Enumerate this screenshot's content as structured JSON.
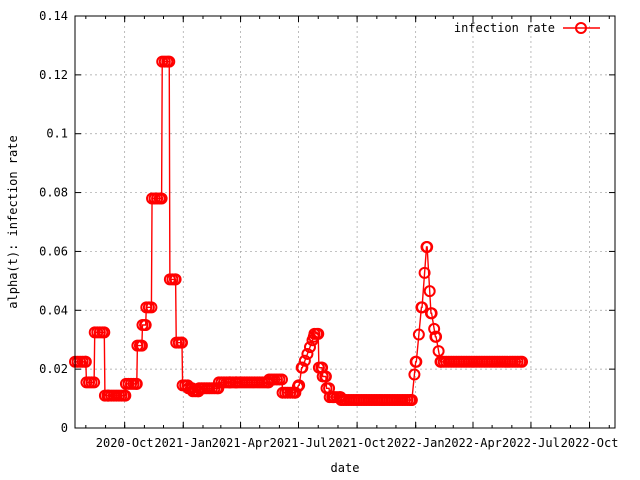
{
  "chart_data": {
    "type": "line",
    "xlabel": "date",
    "ylabel": "alpha(t): infection rate",
    "ylim": [
      0,
      0.14
    ],
    "yticks": [
      "0",
      "0.02",
      "0.04",
      "0.06",
      "0.08",
      "0.1",
      "0.12",
      "0.14"
    ],
    "xlim": [
      "2020-07-15",
      "2022-11-10"
    ],
    "xticks": [
      {
        "label": "2020-Oct",
        "date": "2020-10-01"
      },
      {
        "label": "2021-Jan",
        "date": "2021-01-01"
      },
      {
        "label": "2021-Apr",
        "date": "2021-04-01"
      },
      {
        "label": "2021-Jul",
        "date": "2021-07-01"
      },
      {
        "label": "2021-Oct",
        "date": "2021-10-01"
      },
      {
        "label": "2022-Jan",
        "date": "2022-01-01"
      },
      {
        "label": "2022-Apr",
        "date": "2022-04-01"
      },
      {
        "label": "2022-Jul",
        "date": "2022-07-01"
      },
      {
        "label": "2022-Oct",
        "date": "2022-10-01"
      }
    ],
    "grid": true,
    "legend_position": "top-right",
    "series": [
      {
        "name": "infection rate",
        "color": "#ff0000",
        "marker": "circle",
        "x": [
          "2020-07-15",
          "2020-08-01",
          "2020-08-02",
          "2020-08-14",
          "2020-08-15",
          "2020-08-30",
          "2020-08-31",
          "2020-09-05",
          "2020-09-06",
          "2020-10-02",
          "2020-10-03",
          "2020-10-20",
          "2020-10-21",
          "2020-10-28",
          "2020-10-29",
          "2020-11-03",
          "2020-11-04",
          "2020-11-12",
          "2020-11-13",
          "2020-11-28",
          "2020-11-29",
          "2020-12-10",
          "2020-12-11",
          "2020-12-20",
          "2020-12-21",
          "2020-12-30",
          "2020-12-31",
          "2021-01-08",
          "2021-01-09",
          "2021-01-15",
          "2021-01-16",
          "2021-01-25",
          "2021-01-26",
          "2021-02-25",
          "2021-02-26",
          "2021-03-15",
          "2021-03-16",
          "2021-03-25",
          "2021-03-26",
          "2021-05-15",
          "2021-05-16",
          "2021-06-05",
          "2021-06-06",
          "2021-06-25",
          "2021-06-26",
          "2021-07-01",
          "2021-07-02",
          "2021-07-06",
          "2021-07-07",
          "2021-07-25",
          "2021-07-26",
          "2021-08-01",
          "2021-08-02",
          "2021-08-07",
          "2021-08-08",
          "2021-08-13",
          "2021-08-14",
          "2021-08-18",
          "2021-08-19",
          "2021-08-25",
          "2021-08-26",
          "2021-09-05",
          "2021-09-06",
          "2021-12-25",
          "2021-12-26",
          "2022-01-01",
          "2022-01-02",
          "2022-01-10",
          "2022-01-11",
          "2022-01-18",
          "2022-01-19",
          "2022-01-25",
          "2022-01-26",
          "2022-02-01",
          "2022-02-02",
          "2022-02-09",
          "2022-02-10",
          "2022-06-17"
        ],
        "y": [
          0.0225,
          0.0225,
          0.0155,
          0.0155,
          0.0325,
          0.0325,
          0.011,
          0.011,
          0.011,
          0.011,
          0.015,
          0.015,
          0.028,
          0.028,
          0.035,
          0.035,
          0.041,
          0.041,
          0.078,
          0.078,
          0.1245,
          0.1245,
          0.0505,
          0.0505,
          0.029,
          0.029,
          0.0145,
          0.0145,
          0.0135,
          0.0135,
          0.0125,
          0.0125,
          0.0135,
          0.0135,
          0.0155,
          0.0155,
          0.0155,
          0.0155,
          0.0155,
          0.0155,
          0.0165,
          0.0165,
          0.012,
          0.012,
          0.012,
          0.0145,
          0.0145,
          0.0205,
          0.0205,
          0.031,
          0.032,
          0.032,
          0.0205,
          0.0205,
          0.0175,
          0.0175,
          0.0135,
          0.0135,
          0.0105,
          0.0105,
          0.0105,
          0.0105,
          0.0095,
          0.0095,
          0.0095,
          0.0225,
          0.0225,
          0.041,
          0.041,
          0.0615,
          0.0615,
          0.039,
          0.039,
          0.031,
          0.031,
          0.0225,
          0.0225,
          0.0225
        ]
      }
    ]
  }
}
